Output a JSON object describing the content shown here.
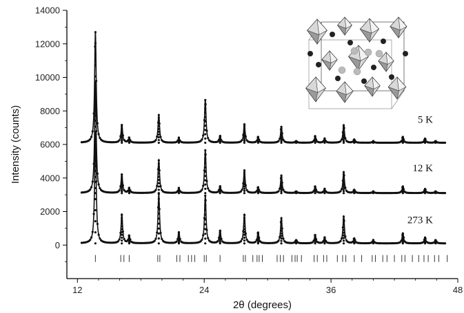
{
  "chart_data": {
    "type": "scatter",
    "title": "",
    "xlabel": "2θ (degrees)",
    "ylabel": "Intensity (counts)",
    "xlim": [
      11,
      48
    ],
    "ylim": [
      -2000,
      14000
    ],
    "x_ticks": [
      12,
      24,
      36,
      48
    ],
    "y_ticks": [
      0,
      2000,
      4000,
      6000,
      8000,
      10000,
      12000,
      14000
    ],
    "x_tick_labels": [
      "12",
      "24",
      "36",
      "48"
    ],
    "y_tick_labels": [
      "0",
      "2000",
      "4000",
      "6000",
      "8000",
      "10000",
      "12000",
      "14000"
    ],
    "grid": false,
    "legend": "none",
    "inset": {
      "icon": "crystal-structure-octahedra-icon"
    },
    "series": [
      {
        "label": "5 K",
        "baseline": 6100,
        "peaks": [
          {
            "x": 13.7,
            "y": 12700
          },
          {
            "x": 16.2,
            "y": 7150
          },
          {
            "x": 16.9,
            "y": 6400
          },
          {
            "x": 19.7,
            "y": 7750
          },
          {
            "x": 21.6,
            "y": 6400
          },
          {
            "x": 24.1,
            "y": 8650
          },
          {
            "x": 25.5,
            "y": 6500
          },
          {
            "x": 27.8,
            "y": 7200
          },
          {
            "x": 29.1,
            "y": 6450
          },
          {
            "x": 31.3,
            "y": 7050
          },
          {
            "x": 32.7,
            "y": 6200
          },
          {
            "x": 34.5,
            "y": 6500
          },
          {
            "x": 35.4,
            "y": 6350
          },
          {
            "x": 37.2,
            "y": 7150
          },
          {
            "x": 38.2,
            "y": 6300
          },
          {
            "x": 40.0,
            "y": 6200
          },
          {
            "x": 42.8,
            "y": 6450
          },
          {
            "x": 44.9,
            "y": 6350
          },
          {
            "x": 45.9,
            "y": 6200
          }
        ]
      },
      {
        "label": "12 K",
        "baseline": 3100,
        "peaks": [
          {
            "x": 13.7,
            "y": 9700
          },
          {
            "x": 16.2,
            "y": 4200
          },
          {
            "x": 16.9,
            "y": 3400
          },
          {
            "x": 19.7,
            "y": 5050
          },
          {
            "x": 21.6,
            "y": 3400
          },
          {
            "x": 24.1,
            "y": 5650
          },
          {
            "x": 25.5,
            "y": 3500
          },
          {
            "x": 27.8,
            "y": 4450
          },
          {
            "x": 29.1,
            "y": 3450
          },
          {
            "x": 31.3,
            "y": 4150
          },
          {
            "x": 32.7,
            "y": 3200
          },
          {
            "x": 34.5,
            "y": 3500
          },
          {
            "x": 35.4,
            "y": 3350
          },
          {
            "x": 37.2,
            "y": 4350
          },
          {
            "x": 38.2,
            "y": 3300
          },
          {
            "x": 40.0,
            "y": 3200
          },
          {
            "x": 42.8,
            "y": 3500
          },
          {
            "x": 44.9,
            "y": 3350
          },
          {
            "x": 45.9,
            "y": 3200
          }
        ]
      },
      {
        "label": "273 K",
        "baseline": 100,
        "peaks": [
          {
            "x": 13.7,
            "y": 6700
          },
          {
            "x": 16.2,
            "y": 1800
          },
          {
            "x": 16.9,
            "y": 550
          },
          {
            "x": 19.7,
            "y": 3050
          },
          {
            "x": 21.6,
            "y": 750
          },
          {
            "x": 24.1,
            "y": 2950
          },
          {
            "x": 25.5,
            "y": 850
          },
          {
            "x": 27.8,
            "y": 1800
          },
          {
            "x": 29.1,
            "y": 750
          },
          {
            "x": 31.3,
            "y": 1600
          },
          {
            "x": 32.7,
            "y": 300
          },
          {
            "x": 34.5,
            "y": 600
          },
          {
            "x": 35.4,
            "y": 450
          },
          {
            "x": 37.2,
            "y": 1700
          },
          {
            "x": 38.2,
            "y": 400
          },
          {
            "x": 40.0,
            "y": 300
          },
          {
            "x": 42.8,
            "y": 700
          },
          {
            "x": 44.9,
            "y": 450
          },
          {
            "x": 45.9,
            "y": 300
          }
        ]
      }
    ],
    "reflection_markers": {
      "y": -800,
      "x": [
        13.7,
        16.1,
        16.4,
        16.9,
        19.6,
        19.8,
        21.4,
        21.7,
        22.5,
        22.8,
        23.1,
        24.0,
        24.2,
        25.5,
        27.7,
        27.9,
        28.6,
        29.0,
        29.2,
        29.5,
        30.9,
        31.2,
        31.5,
        32.3,
        32.6,
        32.8,
        33.2,
        34.4,
        34.7,
        35.3,
        35.6,
        36.6,
        37.1,
        37.4,
        38.2,
        38.9,
        39.9,
        40.2,
        40.9,
        41.3,
        42.0,
        42.7,
        43.0,
        43.7,
        44.3,
        44.8,
        45.2,
        45.8,
        46.2,
        47.0
      ]
    }
  }
}
